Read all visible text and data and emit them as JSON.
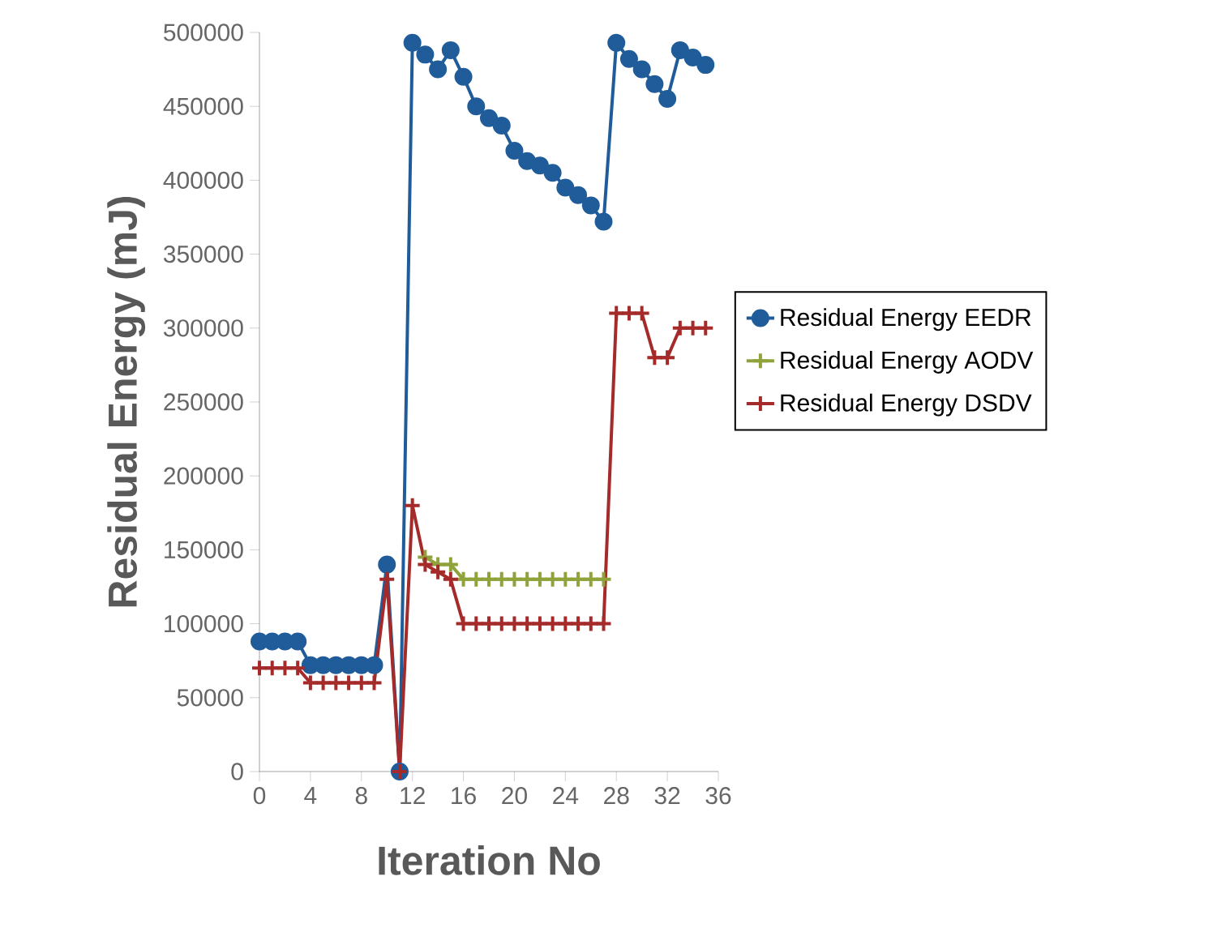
{
  "chart_data": {
    "type": "line",
    "xlabel": "Iteration No",
    "ylabel": "Residual Energy (mJ)",
    "x": [
      0,
      1,
      2,
      3,
      4,
      5,
      6,
      7,
      8,
      9,
      10,
      11,
      12,
      13,
      14,
      15,
      16,
      17,
      18,
      19,
      20,
      21,
      22,
      23,
      24,
      25,
      26,
      27,
      28,
      29,
      30,
      31,
      32,
      33,
      34,
      35
    ],
    "xlim": [
      0,
      36
    ],
    "ylim": [
      0,
      500000
    ],
    "xticks": [
      0,
      4,
      8,
      12,
      16,
      20,
      24,
      28,
      32,
      36
    ],
    "yticks": [
      0,
      50000,
      100000,
      150000,
      200000,
      250000,
      300000,
      350000,
      400000,
      450000,
      500000
    ],
    "legend": "right",
    "grid": false,
    "series": [
      {
        "name": "Residual Energy EEDR",
        "color": "#1f5c99",
        "marker": "circle",
        "values": [
          88000,
          88000,
          88000,
          88000,
          72000,
          72000,
          72000,
          72000,
          72000,
          72000,
          140000,
          0,
          493000,
          485000,
          475000,
          488000,
          470000,
          450000,
          442000,
          437000,
          420000,
          413000,
          410000,
          405000,
          395000,
          390000,
          383000,
          372000,
          493000,
          482000,
          475000,
          465000,
          455000,
          488000,
          483000,
          478000
        ]
      },
      {
        "name": "Residual Energy AODV",
        "color": "#8ea33b",
        "marker": "cross",
        "values": [
          null,
          null,
          null,
          null,
          null,
          null,
          null,
          null,
          null,
          null,
          null,
          null,
          null,
          145000,
          140000,
          140000,
          130000,
          130000,
          130000,
          130000,
          130000,
          130000,
          130000,
          130000,
          130000,
          130000,
          130000,
          130000,
          null,
          null,
          null,
          null,
          null,
          null,
          null,
          null
        ]
      },
      {
        "name": "Residual Energy DSDV",
        "color": "#a52a2a",
        "marker": "cross",
        "values": [
          70000,
          70000,
          70000,
          70000,
          60000,
          60000,
          60000,
          60000,
          60000,
          60000,
          130000,
          0,
          180000,
          140000,
          135000,
          130000,
          100000,
          100000,
          100000,
          100000,
          100000,
          100000,
          100000,
          100000,
          100000,
          100000,
          100000,
          100000,
          310000,
          310000,
          310000,
          280000,
          280000,
          300000,
          300000,
          300000
        ]
      }
    ]
  }
}
